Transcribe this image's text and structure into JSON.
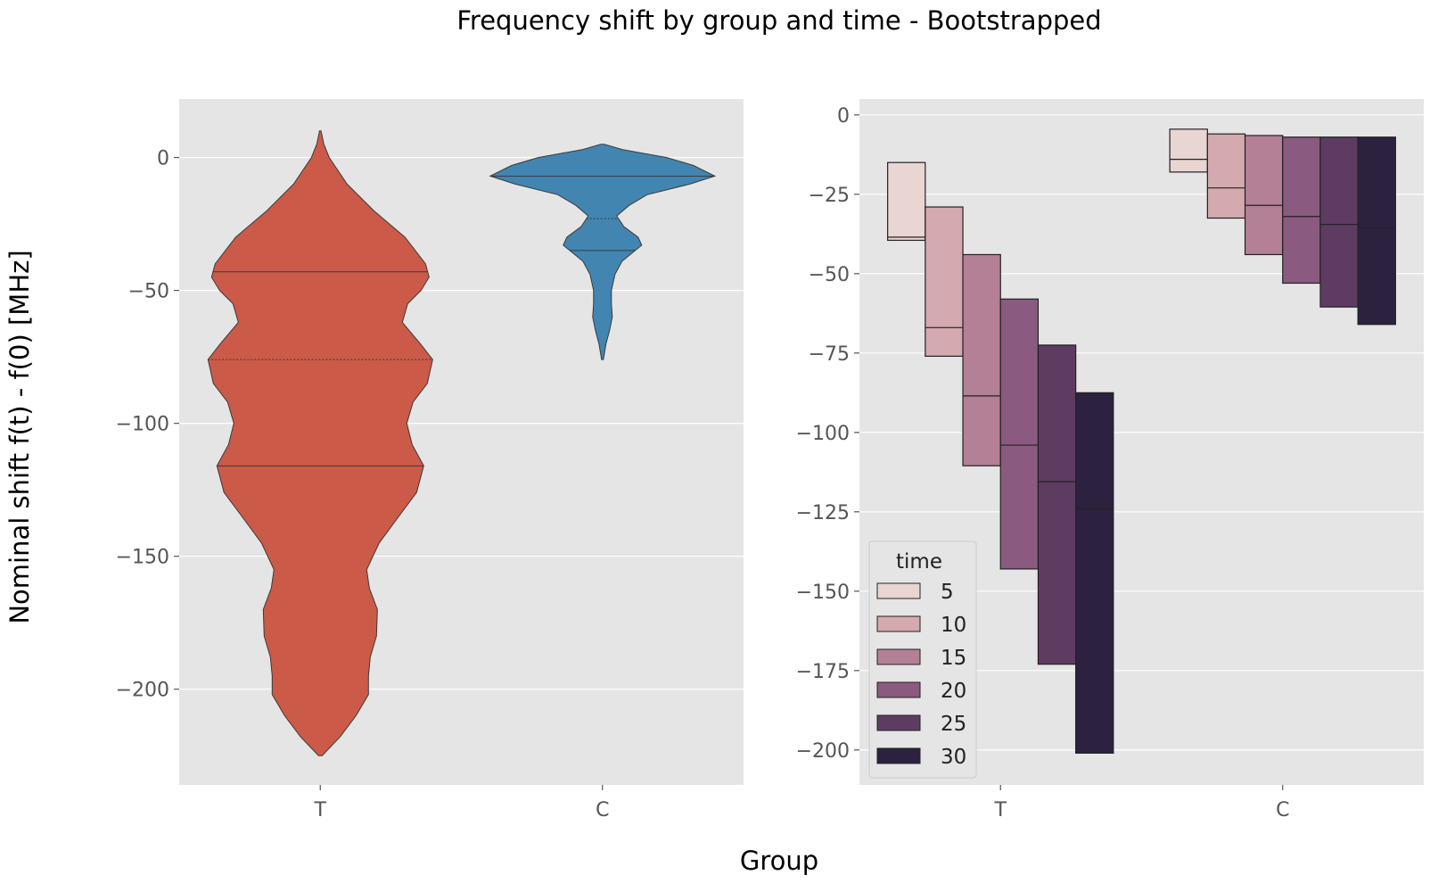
{
  "figure": {
    "title": "Frequency shift by group and time - Bootstrapped",
    "xlabel": "Group",
    "ylabel": "Nominal shift f(t) - f(0) [MHz]"
  },
  "chart_data": [
    {
      "type": "violin",
      "categories": [
        "T",
        "C"
      ],
      "ylim": [
        -236,
        22
      ],
      "yticks": [
        0,
        -50,
        -100,
        -150,
        -200
      ],
      "grid": true,
      "colors": {
        "T": "#cb5a48",
        "C": "#4285b0"
      },
      "series": [
        {
          "category": "T",
          "range": [
            -225,
            10
          ],
          "quartiles": [
            -43,
            -76,
            -116
          ],
          "profile": [
            [
              10,
              0.8
            ],
            [
              5,
              4
            ],
            [
              0,
              10
            ],
            [
              -10,
              30
            ],
            [
              -20,
              60
            ],
            [
              -30,
              95
            ],
            [
              -40,
              118
            ],
            [
              -45,
              122
            ],
            [
              -50,
              113
            ],
            [
              -55,
              98
            ],
            [
              -62,
              92
            ],
            [
              -70,
              112
            ],
            [
              -76,
              126
            ],
            [
              -85,
              120
            ],
            [
              -92,
              104
            ],
            [
              -100,
              97
            ],
            [
              -108,
              103
            ],
            [
              -116,
              116
            ],
            [
              -126,
              108
            ],
            [
              -135,
              88
            ],
            [
              -145,
              66
            ],
            [
              -155,
              52
            ],
            [
              -162,
              55
            ],
            [
              -170,
              64
            ],
            [
              -180,
              63
            ],
            [
              -188,
              56
            ],
            [
              -195,
              54
            ],
            [
              -202,
              54
            ],
            [
              -210,
              40
            ],
            [
              -218,
              22
            ],
            [
              -225,
              2
            ]
          ]
        },
        {
          "category": "C",
          "range": [
            -76,
            5
          ],
          "quartiles": [
            -7,
            -23,
            -35
          ],
          "profile": [
            [
              5,
              2
            ],
            [
              3,
              22
            ],
            [
              0,
              72
            ],
            [
              -3,
              102
            ],
            [
              -7,
              126
            ],
            [
              -10,
              98
            ],
            [
              -14,
              50
            ],
            [
              -18,
              30
            ],
            [
              -22,
              16
            ],
            [
              -26,
              24
            ],
            [
              -30,
              40
            ],
            [
              -33,
              44
            ],
            [
              -36,
              33
            ],
            [
              -39,
              22
            ],
            [
              -44,
              14
            ],
            [
              -50,
              10
            ],
            [
              -55,
              10
            ],
            [
              -60,
              11
            ],
            [
              -65,
              8
            ],
            [
              -70,
              4
            ],
            [
              -76,
              1
            ]
          ]
        }
      ]
    },
    {
      "type": "box",
      "categories": [
        "T",
        "C"
      ],
      "ylim": [
        -211,
        5
      ],
      "yticks": [
        0,
        -25,
        -50,
        -75,
        -100,
        -125,
        -150,
        -175,
        -200
      ],
      "grid": true,
      "legend": {
        "title": "time",
        "position": "lower-left",
        "entries": [
          "5",
          "10",
          "15",
          "20",
          "25",
          "30"
        ]
      },
      "series": [
        {
          "name": "5",
          "color": "#e9d5d1",
          "T": {
            "q1": -39.5,
            "median": -38.5,
            "q3": -15
          },
          "C": {
            "q1": -18,
            "median": -14,
            "q3": -4.5
          }
        },
        {
          "name": "10",
          "color": "#d4a9b0",
          "T": {
            "q1": -76,
            "median": -67,
            "q3": -29
          },
          "C": {
            "q1": -32.5,
            "median": -23,
            "q3": -6
          }
        },
        {
          "name": "15",
          "color": "#b38096",
          "T": {
            "q1": -110.5,
            "median": -88.5,
            "q3": -44
          },
          "C": {
            "q1": -44,
            "median": -28.5,
            "q3": -6.5
          }
        },
        {
          "name": "20",
          "color": "#8b5a80",
          "T": {
            "q1": -143,
            "median": -104,
            "q3": -58
          },
          "C": {
            "q1": -53,
            "median": -32,
            "q3": -7
          }
        },
        {
          "name": "25",
          "color": "#5e3c62",
          "T": {
            "q1": -173,
            "median": -115.5,
            "q3": -72.5
          },
          "C": {
            "q1": -60.5,
            "median": -34.5,
            "q3": -7
          }
        },
        {
          "name": "30",
          "color": "#2d2140",
          "T": {
            "q1": -201,
            "median": -124,
            "q3": -87.5
          },
          "C": {
            "q1": -66,
            "median": -35.5,
            "q3": -7
          }
        }
      ]
    }
  ]
}
